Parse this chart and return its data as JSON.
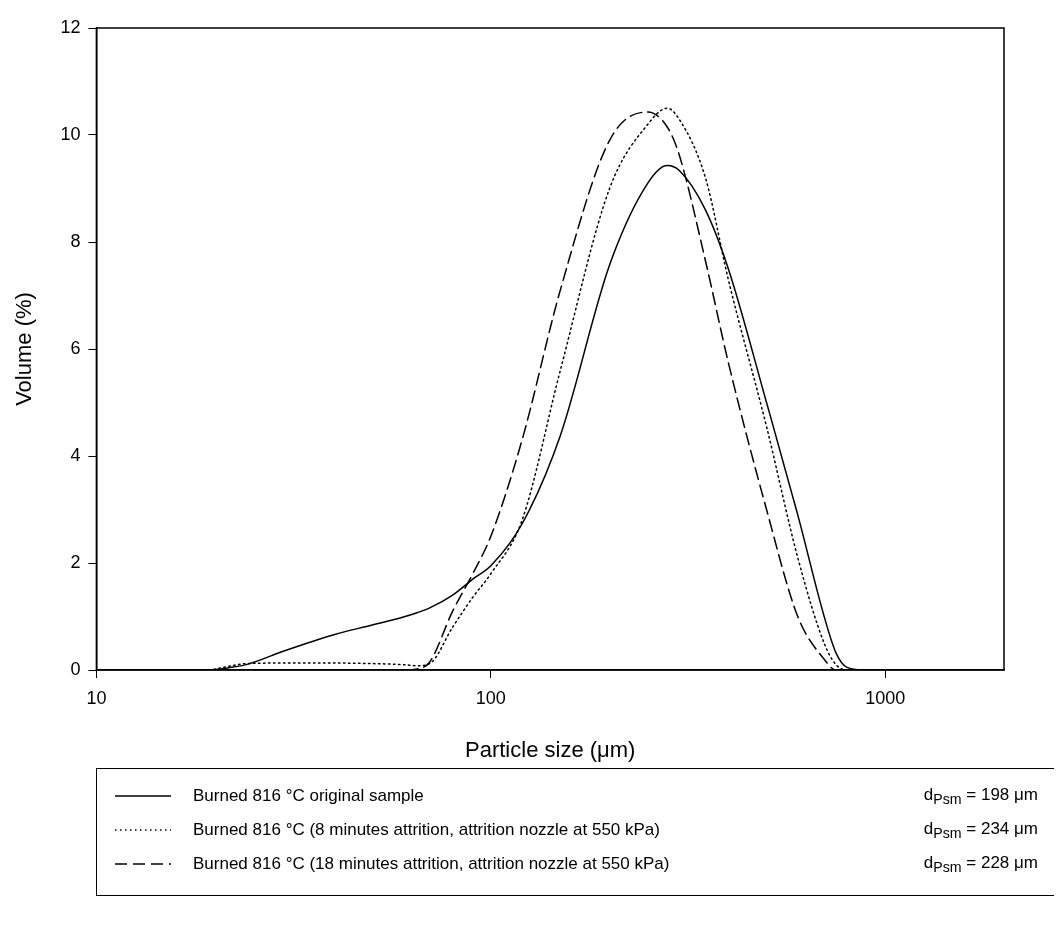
{
  "chart_data": {
    "type": "line",
    "xlabel": "Particle size (μm)",
    "ylabel": "Volume (%)",
    "log": "x",
    "xlim": [
      10,
      2000
    ],
    "xticks": [
      10,
      100,
      1000
    ],
    "ylim": [
      0,
      12
    ],
    "yticks": [
      0,
      2,
      4,
      6,
      8,
      10,
      12
    ],
    "legend": "bottom",
    "x": [
      14,
      19,
      22,
      24,
      30,
      40,
      50,
      60,
      65,
      70,
      80,
      90,
      100,
      120,
      150,
      200,
      250,
      280,
      300,
      350,
      400,
      500,
      600,
      700,
      750,
      800,
      900,
      1200
    ],
    "series": [
      {
        "name": "Burned 816 °C original sample",
        "color": "#000000",
        "line_style": "solid",
        "values": [
          0,
          0,
          0.05,
          0.1,
          0.36,
          0.66,
          0.84,
          0.99,
          1.07,
          1.16,
          1.4,
          1.7,
          1.95,
          2.73,
          4.38,
          7.57,
          9.1,
          9.43,
          9.34,
          8.6,
          7.5,
          5.0,
          2.9,
          1.0,
          0.32,
          0.05,
          0,
          0
        ]
      },
      {
        "name": "Burned 816 °C (8 minutes attrition, attrition nozzle at 550 kPa)",
        "color": "#000000",
        "line_style": "dotted",
        "values": [
          0,
          0,
          0.08,
          0.12,
          0.13,
          0.13,
          0.12,
          0.1,
          0.08,
          0.12,
          0.8,
          1.36,
          1.8,
          2.8,
          5.6,
          9.0,
          10.2,
          10.5,
          10.3,
          9.2,
          7.3,
          4.55,
          2.1,
          0.5,
          0.1,
          0,
          0,
          0
        ]
      },
      {
        "name": "Burned 816 °C (18 minutes attrition, attrition nozzle at 550 kPa)",
        "color": "#000000",
        "line_style": "dashed",
        "values": [
          0,
          0,
          0,
          0,
          0,
          0,
          0,
          0,
          0.02,
          0.15,
          1.1,
          1.8,
          2.5,
          4.3,
          7.1,
          9.9,
          10.43,
          10.15,
          9.64,
          7.65,
          5.75,
          3.0,
          1.0,
          0.2,
          0,
          0,
          0,
          0
        ]
      }
    ],
    "annotations": [
      "d$_{Psm}$ = 198 μm",
      "d$_{Psm}$ = 234 μm",
      "d$_{Psm}$ = 228 μm"
    ]
  }
}
